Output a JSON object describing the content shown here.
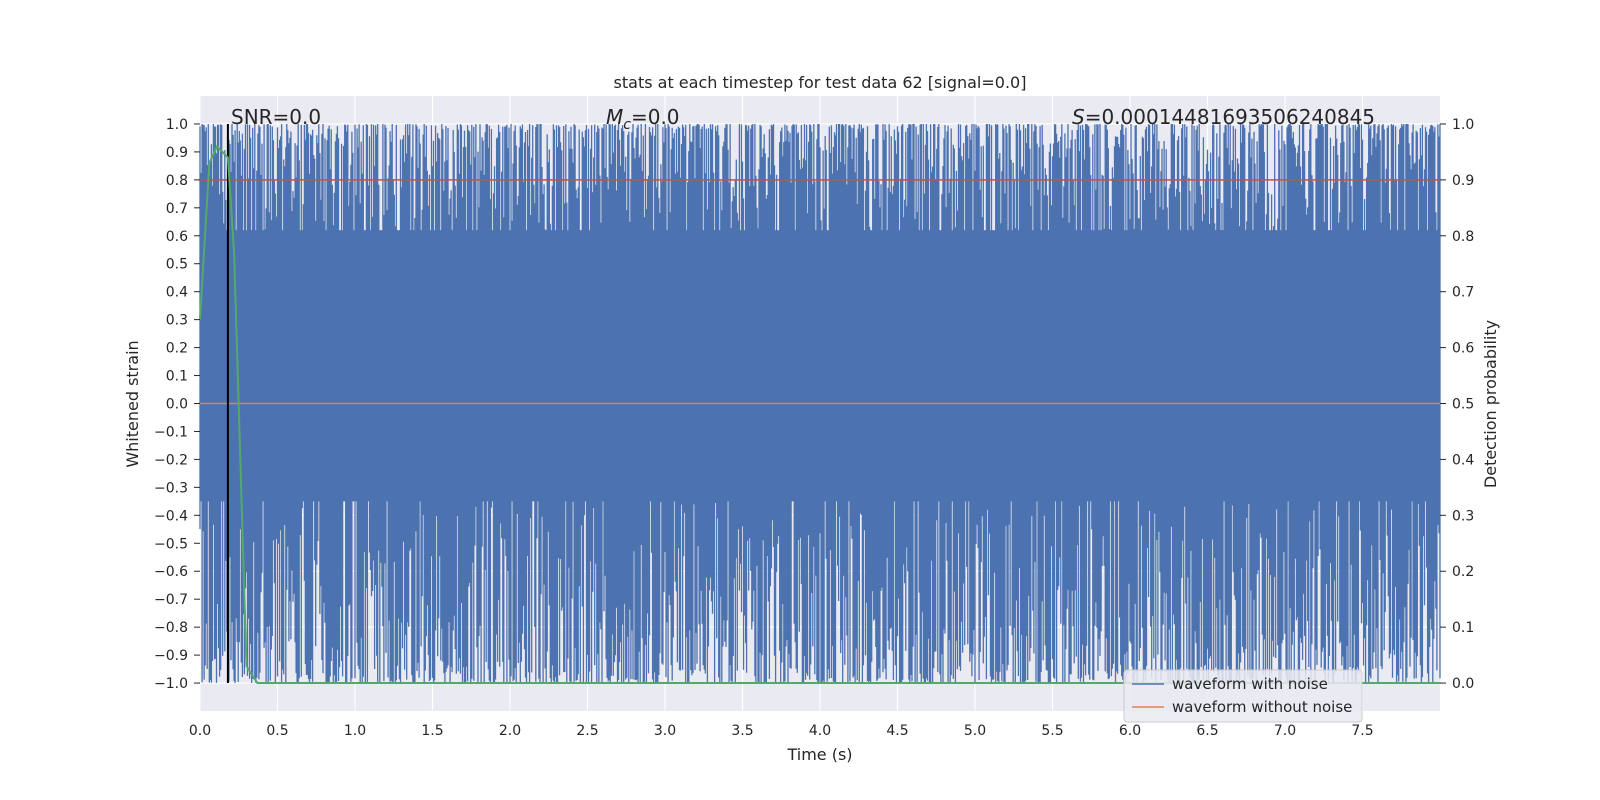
{
  "chart_data": {
    "type": "line",
    "title": "stats at each timestep for test data 62 [signal=0.0]",
    "xlabel": "Time (s)",
    "ylabel": "Whitened strain",
    "ylabel_right": "Detection probability",
    "xlim": [
      0.0,
      8.0
    ],
    "ylim": [
      -1.1,
      1.1
    ],
    "ylim_right": [
      -0.05,
      1.05
    ],
    "x_ticks": [
      "0.0",
      "0.5",
      "1.0",
      "1.5",
      "2.0",
      "2.5",
      "3.0",
      "3.5",
      "4.0",
      "4.5",
      "5.0",
      "5.5",
      "6.0",
      "6.5",
      "7.0",
      "7.5"
    ],
    "y_ticks": [
      "1.0",
      "0.9",
      "0.8",
      "0.7",
      "0.6",
      "0.5",
      "0.4",
      "0.3",
      "0.2",
      "0.1",
      "0.0",
      "−0.1",
      "−0.2",
      "−0.3",
      "−0.4",
      "−0.5",
      "−0.6",
      "−0.7",
      "−0.8",
      "−0.9",
      "−1.0"
    ],
    "y_right_ticks": [
      "1.0",
      "0.9",
      "0.8",
      "0.7",
      "0.6",
      "0.5",
      "0.4",
      "0.3",
      "0.2",
      "0.1",
      "0.0"
    ],
    "annotations": {
      "snr": "SNR=0.0",
      "mc_symbol": "M",
      "mc_sub": "c",
      "mc_value": "=0.0",
      "s_symbol": "S",
      "s_value": "=0.00014481693506240845"
    },
    "legend": {
      "position": "lower right",
      "entries": [
        {
          "label": "waveform with noise",
          "color": "#4c72b0"
        },
        {
          "label": "waveform without noise",
          "color": "#dd8452"
        }
      ]
    },
    "series": [
      {
        "name": "waveform with noise",
        "color": "#4c72b0",
        "kind": "noise band",
        "range": [
          -1.0,
          1.0
        ]
      },
      {
        "name": "waveform without noise",
        "color": "#dd8452",
        "values": [
          [
            0.0,
            0.0
          ],
          [
            8.0,
            0.0
          ]
        ]
      },
      {
        "name": "detection probability",
        "color": "#55a868",
        "axis": "right",
        "points": [
          [
            0.0,
            0.65
          ],
          [
            0.06,
            0.93
          ],
          [
            0.11,
            0.96
          ],
          [
            0.18,
            0.94
          ],
          [
            0.22,
            0.77
          ],
          [
            0.3,
            0.03
          ],
          [
            0.37,
            0.0
          ],
          [
            8.0,
            0.0
          ]
        ]
      },
      {
        "name": "threshold",
        "color": "#c44e52",
        "axis": "right",
        "value": 0.9
      },
      {
        "name": "time marker",
        "color": "#000000",
        "x": 0.18
      }
    ],
    "colors": {
      "axes_bg": "#eaeaf2",
      "grid": "#ffffff",
      "text": "#262626"
    }
  }
}
